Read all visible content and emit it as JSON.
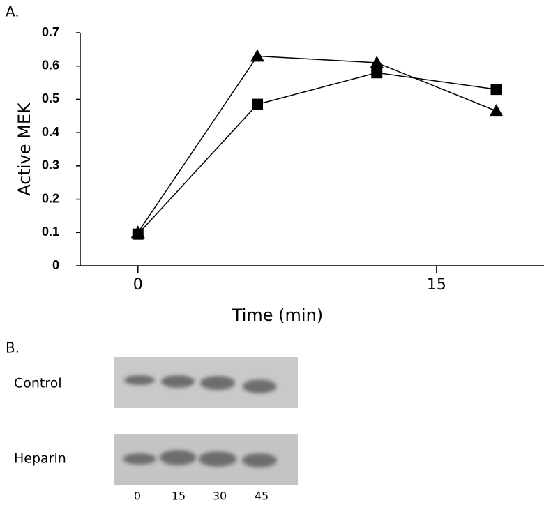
{
  "panel_a_label": "A.",
  "chart_data": {
    "type": "line",
    "ylabel": "Active MEK",
    "xlabel": "Time (min)",
    "x": [
      0,
      6,
      12,
      18
    ],
    "series": [
      {
        "color": "#000000",
        "marker": "triangle",
        "values": [
          0.1,
          0.63,
          0.61,
          0.465
        ]
      },
      {
        "color": "#000000",
        "marker": "square",
        "values": [
          0.095,
          0.485,
          0.58,
          0.53
        ]
      }
    ],
    "xlim": [
      -2.9,
      20.4
    ],
    "xticks": [
      0,
      15
    ],
    "ylim": [
      0,
      0.7
    ],
    "yticks": [
      0,
      0.1,
      0.2,
      0.3,
      0.4,
      0.5,
      0.6,
      0.7
    ]
  },
  "panel_b_label": "B.",
  "blot": {
    "rows": [
      "Control",
      "Heparin"
    ],
    "lanes": [
      "0",
      "15",
      "30",
      "45"
    ]
  }
}
